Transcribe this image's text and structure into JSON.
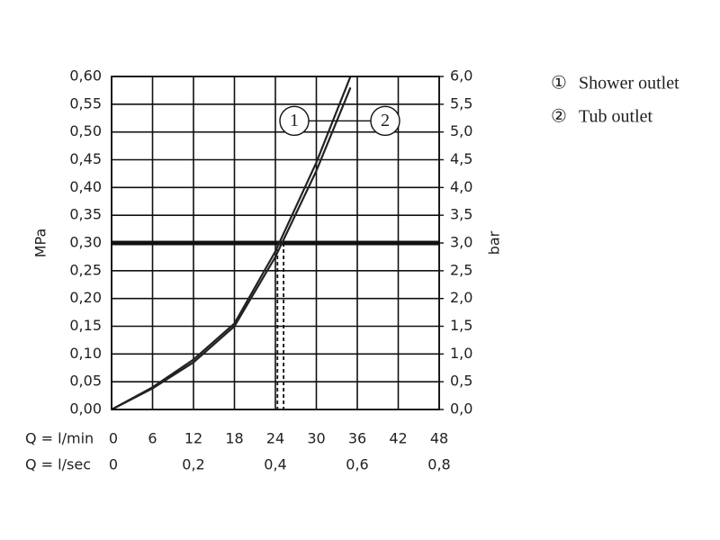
{
  "chart_data": {
    "type": "line",
    "x_label": "Q = l/min",
    "x2_label": "Q = l/sec",
    "y_label": "MPa",
    "y2_label": "bar",
    "x": [
      0,
      6,
      12,
      18,
      24,
      30,
      35
    ],
    "series": [
      {
        "name": "Shower outlet",
        "legend_symbol": "①",
        "callout": "1",
        "color": "#222222",
        "values": [
          0,
          0.04,
          0.09,
          0.155,
          0.285,
          0.445,
          0.6
        ]
      },
      {
        "name": "Tub outlet",
        "legend_symbol": "②",
        "callout": "2",
        "color": "#222222",
        "values": [
          0,
          0.038,
          0.085,
          0.15,
          0.275,
          0.43,
          0.58
        ]
      }
    ],
    "xlim": [
      0,
      48
    ],
    "xticks": [
      0,
      6,
      12,
      18,
      24,
      30,
      36,
      42,
      48
    ],
    "x2lim": [
      0,
      0.8
    ],
    "x2ticks": [
      0,
      {
        "value": 0.2,
        "label": "0,2"
      },
      {
        "value": 0.4,
        "label": "0,4"
      },
      {
        "value": 0.6,
        "label": "0,6"
      },
      {
        "value": 0.8,
        "label": "0,8"
      }
    ],
    "ylim": [
      0,
      0.6
    ],
    "yticks": [
      {
        "value": 0,
        "label": "0,00"
      },
      {
        "value": 0.05,
        "label": "0,05"
      },
      {
        "value": 0.1,
        "label": "0,10"
      },
      {
        "value": 0.15,
        "label": "0,15"
      },
      {
        "value": 0.2,
        "label": "0,20"
      },
      {
        "value": 0.25,
        "label": "0,25"
      },
      {
        "value": 0.3,
        "label": "0,30"
      },
      {
        "value": 0.35,
        "label": "0,35"
      },
      {
        "value": 0.4,
        "label": "0,40"
      },
      {
        "value": 0.45,
        "label": "0,45"
      },
      {
        "value": 0.5,
        "label": "0,50"
      },
      {
        "value": 0.55,
        "label": "0,55"
      },
      {
        "value": 0.6,
        "label": "0,60"
      }
    ],
    "y2lim": [
      0,
      6
    ],
    "y2ticks": [
      {
        "value": 0,
        "label": "0,0"
      },
      {
        "value": 0.5,
        "label": "0,5"
      },
      {
        "value": 1,
        "label": "1,0"
      },
      {
        "value": 1.5,
        "label": "1,5"
      },
      {
        "value": 2,
        "label": "2,0"
      },
      {
        "value": 2.5,
        "label": "2,5"
      },
      {
        "value": 3,
        "label": "3,0"
      },
      {
        "value": 3.5,
        "label": "3,5"
      },
      {
        "value": 4,
        "label": "4,0"
      },
      {
        "value": 4.5,
        "label": "4,5"
      },
      {
        "value": 5,
        "label": "5,0"
      },
      {
        "value": 5.5,
        "label": "5,5"
      },
      {
        "value": 6,
        "label": "6,0"
      }
    ],
    "reference_y": 0.3,
    "drop_lines_x": [
      24.3,
      25.2
    ],
    "callout_y": 0.52,
    "grid": true
  }
}
